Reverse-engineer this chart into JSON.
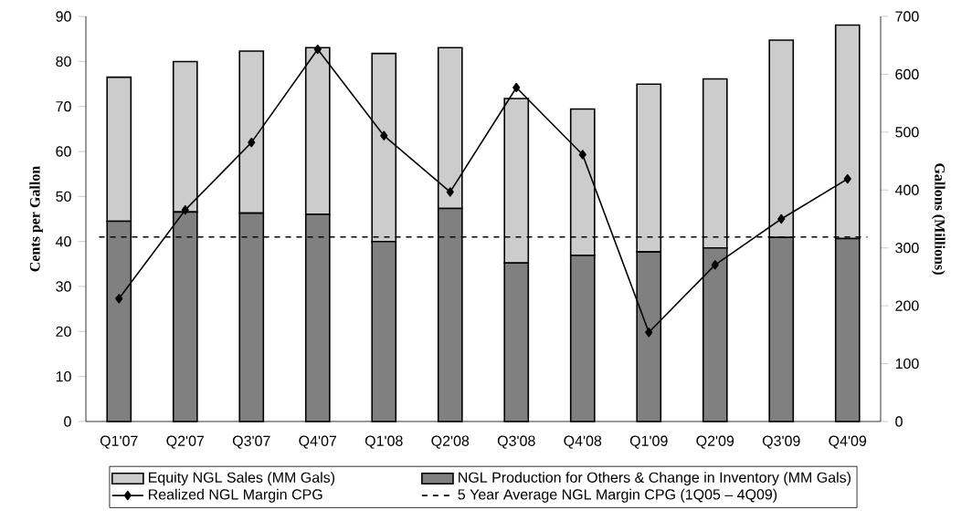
{
  "chart_data": {
    "type": "bar",
    "stacked": true,
    "ylabel": "Cents per Gallon",
    "y2label": "Gallons (Millions)",
    "categories": [
      "Q1'07",
      "Q2'07",
      "Q3'07",
      "Q4'07",
      "Q1'08",
      "Q2'08",
      "Q3'08",
      "Q4'08",
      "Q1'09",
      "Q2'09",
      "Q3'09",
      "Q4'09"
    ],
    "series": [
      {
        "name": "NGL Production for Others & Change in Inventory (MM Gals)",
        "color": "#808080",
        "axis": "y2",
        "values": [
          346,
          362,
          360,
          358,
          311,
          368,
          274,
          287,
          293,
          300,
          318,
          316
        ]
      },
      {
        "name": "Equity NGL Sales (MM Gals)",
        "color": "#cccccc",
        "axis": "y2",
        "values": [
          249,
          260,
          280,
          288,
          325,
          278,
          284,
          253,
          290,
          292,
          341,
          369
        ]
      },
      {
        "name": "Realized NGL Margin CPG",
        "type": "line",
        "color": "#000000",
        "marker": "diamond",
        "values": [
          27.3,
          47,
          62,
          82.7,
          63.5,
          51,
          74.2,
          59.3,
          19.8,
          34.8,
          45,
          53.9
        ]
      }
    ],
    "ref_lines": [
      {
        "axis": "y",
        "value": 41,
        "label": "5 Year Average NGL Margin CPG (1Q05 – 4Q09)",
        "color": "#000000",
        "line_style": "dashed"
      }
    ],
    "ylim": [
      0,
      90
    ],
    "yticks": [
      0,
      10,
      20,
      30,
      40,
      50,
      60,
      70,
      80,
      90
    ],
    "y2lim": [
      0,
      700
    ],
    "y2ticks": [
      0,
      100,
      200,
      300,
      400,
      500,
      600,
      700
    ],
    "legend": "bottom",
    "grid": false
  }
}
